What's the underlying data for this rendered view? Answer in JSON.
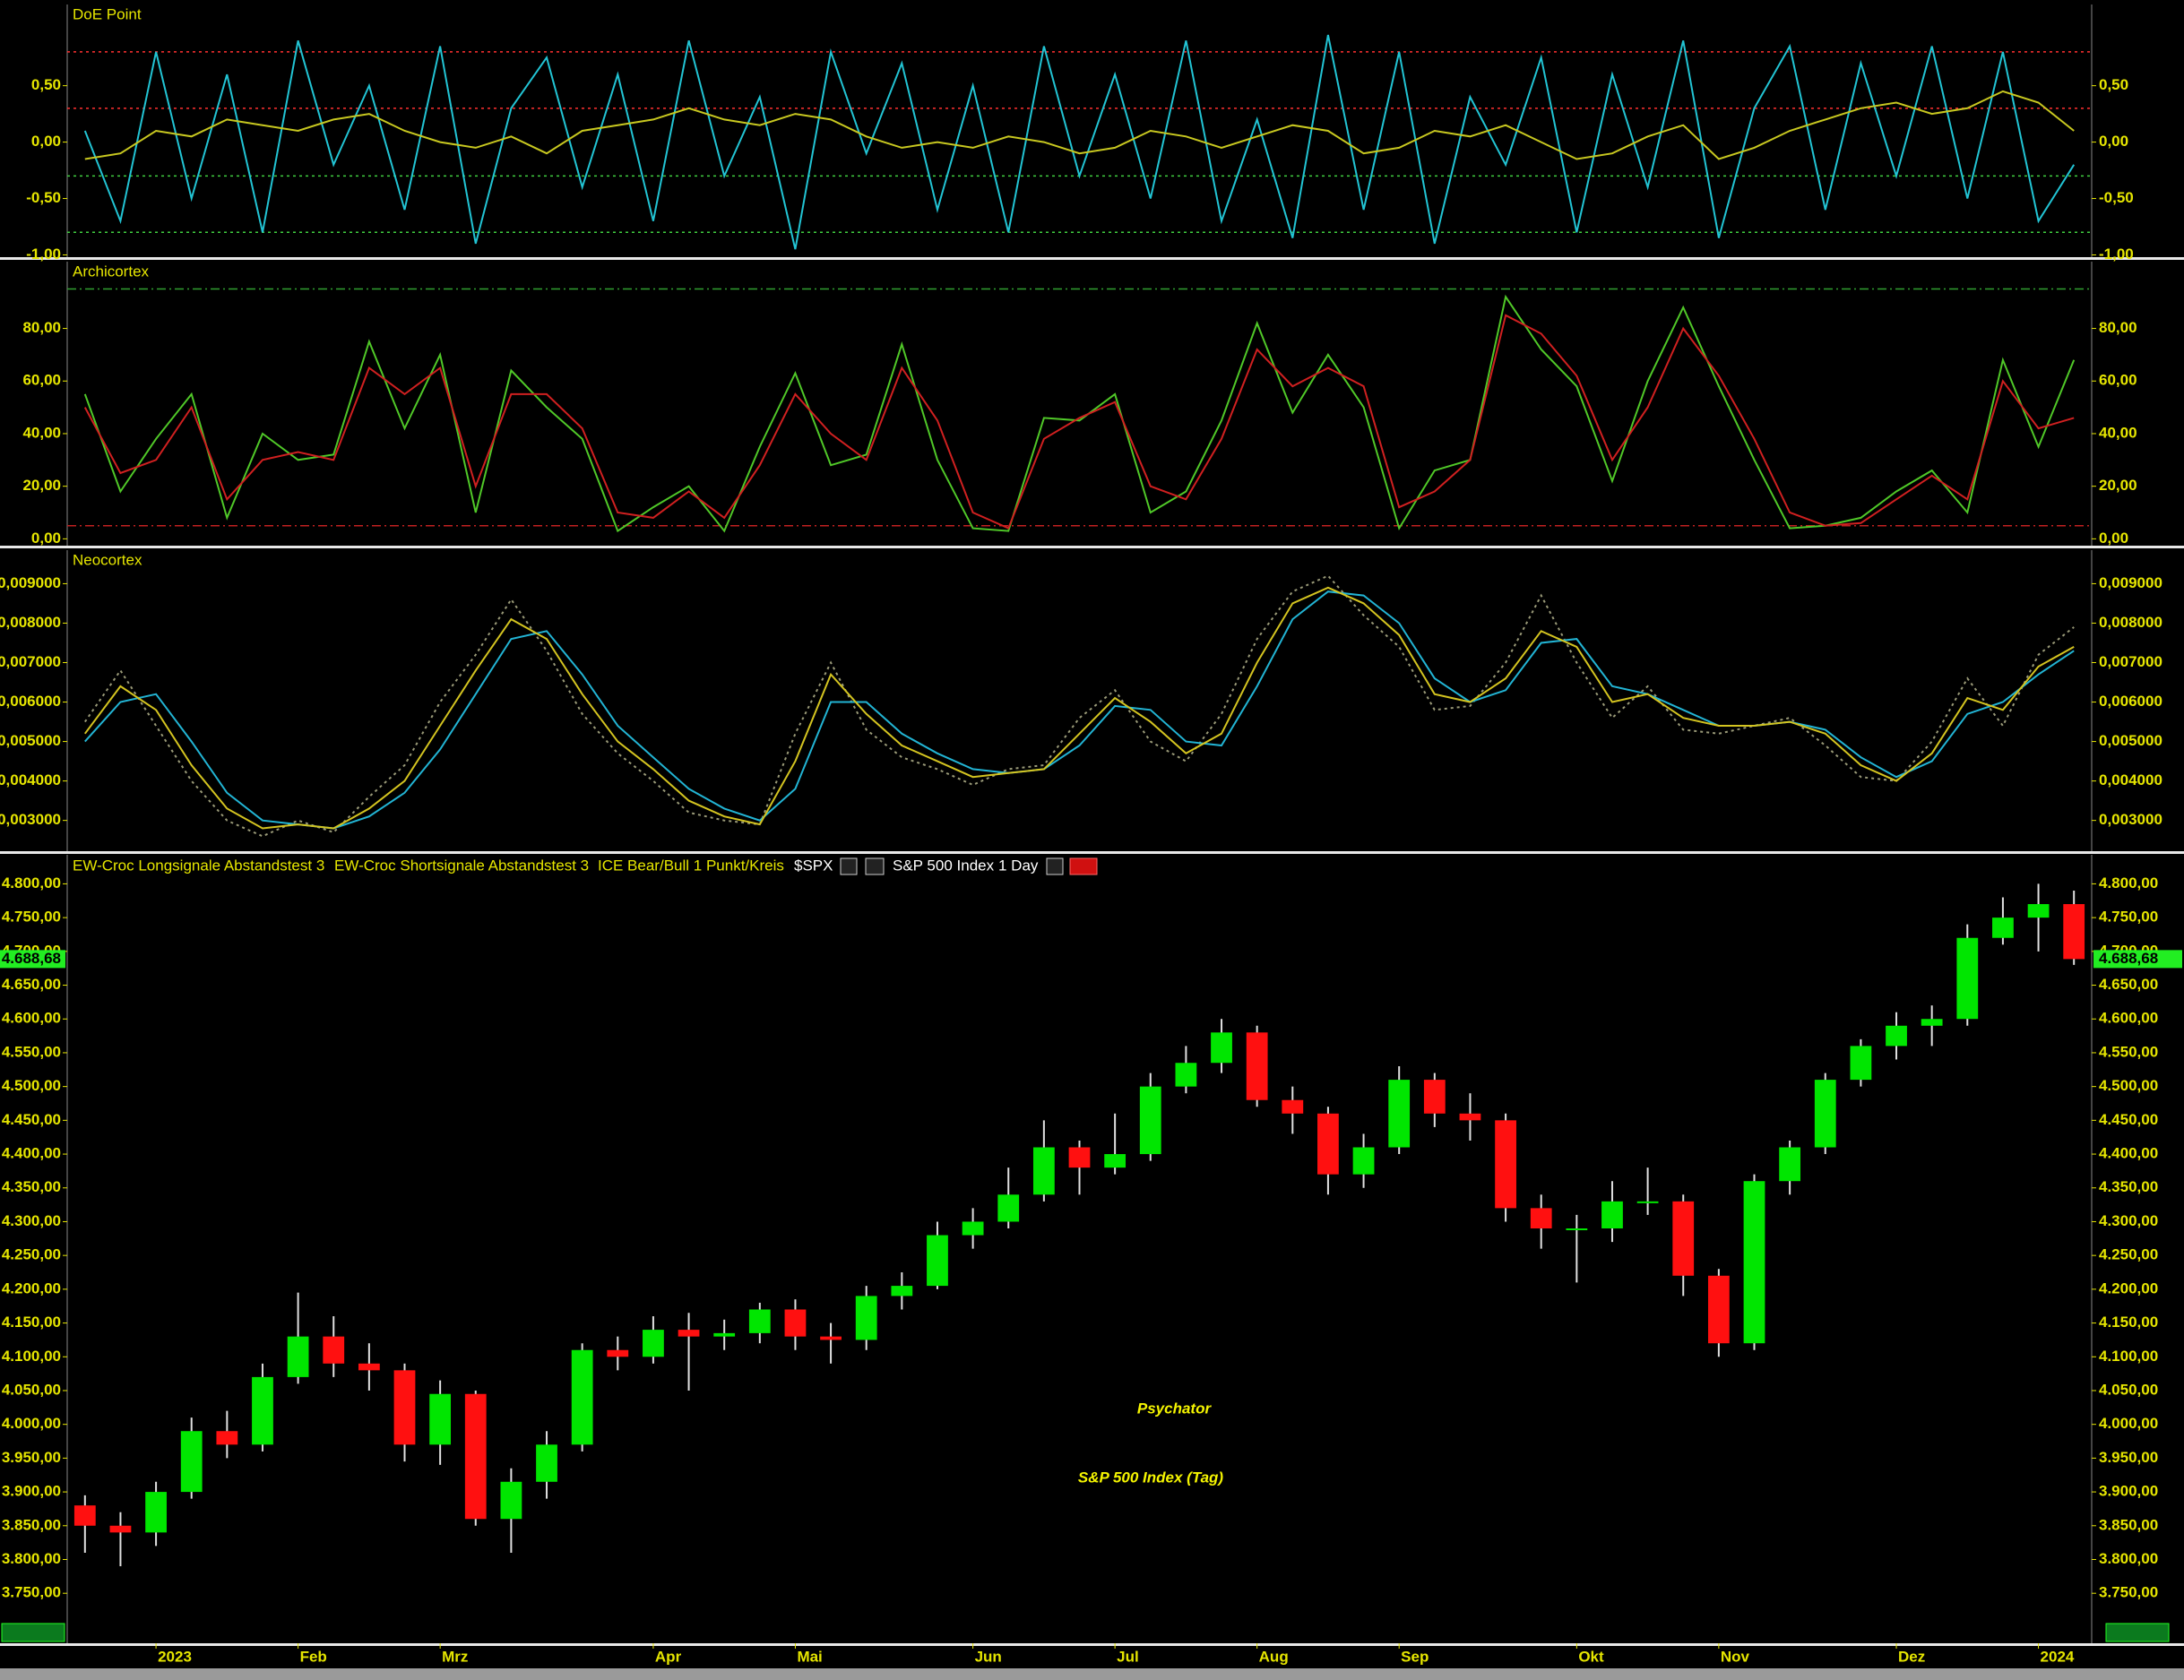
{
  "chart_data": [
    {
      "type": "line",
      "title": "DoE Point",
      "ylim": [
        -1.02,
        1.22
      ],
      "yticks": [
        {
          "value": 0.5,
          "label": "0,50"
        },
        {
          "value": 0,
          "label": "0,00"
        },
        {
          "value": -0.5,
          "label": "-0,50"
        },
        {
          "value": -1,
          "label": "-1,00"
        }
      ],
      "reference_lines": [
        {
          "value": 0.8,
          "color": "#ff3030",
          "style": "dotted"
        },
        {
          "value": 0.3,
          "color": "#ff3030",
          "style": "dotted"
        },
        {
          "value": -0.3,
          "color": "#40d040",
          "style": "dotted"
        },
        {
          "value": -0.8,
          "color": "#40d040",
          "style": "dotted"
        }
      ],
      "series": [
        {
          "color": "#22c4d4",
          "values": [
            0.1,
            -0.7,
            0.8,
            -0.5,
            0.6,
            -0.8,
            0.9,
            -0.2,
            0.5,
            -0.6,
            0.85,
            -0.9,
            0.3,
            0.75,
            -0.4,
            0.6,
            -0.7,
            0.9,
            -0.3,
            0.4,
            -0.95,
            0.8,
            -0.1,
            0.7,
            -0.6,
            0.5,
            -0.8,
            0.85,
            -0.3,
            0.6,
            -0.5,
            0.9,
            -0.7,
            0.2,
            -0.85,
            0.95,
            -0.6,
            0.8,
            -0.9,
            0.4,
            -0.2,
            0.75,
            -0.8,
            0.6,
            -0.4,
            0.9,
            -0.85,
            0.3,
            0.85,
            -0.6,
            0.7,
            -0.3,
            0.85,
            -0.5,
            0.8,
            -0.7,
            -0.2
          ]
        },
        {
          "color": "#c8c820",
          "values": [
            -0.15,
            -0.1,
            0.1,
            0.05,
            0.2,
            0.15,
            0.1,
            0.2,
            0.25,
            0.1,
            0.0,
            -0.05,
            0.05,
            -0.1,
            0.1,
            0.15,
            0.2,
            0.3,
            0.2,
            0.15,
            0.25,
            0.2,
            0.05,
            -0.05,
            0.0,
            -0.05,
            0.05,
            0.0,
            -0.1,
            -0.05,
            0.1,
            0.05,
            -0.05,
            0.05,
            0.15,
            0.1,
            -0.1,
            -0.05,
            0.1,
            0.05,
            0.15,
            0.0,
            -0.15,
            -0.1,
            0.05,
            0.15,
            -0.15,
            -0.05,
            0.1,
            0.2,
            0.3,
            0.35,
            0.25,
            0.3,
            0.45,
            0.35,
            0.1
          ]
        }
      ]
    },
    {
      "type": "line",
      "title": "Archicortex",
      "ylim": [
        -2.6,
        105.4
      ],
      "yticks": [
        {
          "value": 0,
          "label": "0,00"
        },
        {
          "value": 20,
          "label": "20,00"
        },
        {
          "value": 40,
          "label": "40,00"
        },
        {
          "value": 60,
          "label": "60,00"
        },
        {
          "value": 80,
          "label": "80,00"
        }
      ],
      "reference_lines": [
        {
          "value": 95,
          "color": "#30a030",
          "style": "dashdot"
        },
        {
          "value": 5,
          "color": "#c02020",
          "style": "dashdot"
        }
      ],
      "series": [
        {
          "color": "#50c828",
          "values": [
            55,
            18,
            38,
            55,
            8,
            40,
            30,
            32,
            75,
            42,
            70,
            10,
            64,
            50,
            38,
            3,
            12,
            20,
            3,
            35,
            63,
            28,
            32,
            74,
            30,
            4,
            3,
            46,
            45,
            55,
            10,
            18,
            45,
            82,
            48,
            70,
            50,
            4,
            26,
            30,
            92,
            72,
            58,
            22,
            60,
            88,
            58,
            30,
            4,
            5,
            8,
            18,
            26,
            10,
            68,
            35,
            68
          ]
        },
        {
          "color": "#d02020",
          "values": [
            50,
            25,
            30,
            50,
            15,
            30,
            33,
            30,
            65,
            55,
            65,
            20,
            55,
            55,
            42,
            10,
            8,
            18,
            8,
            28,
            55,
            40,
            30,
            65,
            45,
            10,
            4,
            38,
            46,
            52,
            20,
            15,
            38,
            72,
            58,
            65,
            58,
            12,
            18,
            30,
            85,
            78,
            62,
            30,
            50,
            80,
            62,
            38,
            10,
            5,
            6,
            15,
            24,
            15,
            60,
            42,
            46
          ]
        }
      ]
    },
    {
      "type": "line",
      "title": "Neocortex",
      "ylim": [
        0.00222,
        0.00985
      ],
      "yticks": [
        {
          "value": 0.003,
          "label": "0,003000"
        },
        {
          "value": 0.004,
          "label": "0,004000"
        },
        {
          "value": 0.005,
          "label": "0,005000"
        },
        {
          "value": 0.006,
          "label": "0,006000"
        },
        {
          "value": 0.007,
          "label": "0,007000"
        },
        {
          "value": 0.008,
          "label": "0,008000"
        },
        {
          "value": 0.009,
          "label": "0,009000"
        }
      ],
      "series": [
        {
          "color": "#9a9a78",
          "style": "dotted",
          "values": [
            0.0055,
            0.0068,
            0.0054,
            0.004,
            0.003,
            0.0026,
            0.003,
            0.0027,
            0.0036,
            0.0044,
            0.006,
            0.0072,
            0.0086,
            0.0073,
            0.0057,
            0.0047,
            0.004,
            0.0032,
            0.003,
            0.0029,
            0.0052,
            0.007,
            0.0053,
            0.0046,
            0.0043,
            0.0039,
            0.0043,
            0.0044,
            0.0056,
            0.0063,
            0.005,
            0.0045,
            0.0057,
            0.0076,
            0.0088,
            0.0092,
            0.0082,
            0.0074,
            0.0058,
            0.0059,
            0.007,
            0.0087,
            0.007,
            0.0056,
            0.0064,
            0.0053,
            0.0052,
            0.0054,
            0.0056,
            0.0049,
            0.0041,
            0.004,
            0.005,
            0.0066,
            0.0054,
            0.0072,
            0.0079
          ]
        },
        {
          "color": "#22b4d4",
          "values": [
            0.005,
            0.006,
            0.0062,
            0.005,
            0.0037,
            0.003,
            0.0029,
            0.0028,
            0.0031,
            0.0037,
            0.0048,
            0.0062,
            0.0076,
            0.0078,
            0.0067,
            0.0054,
            0.0046,
            0.0038,
            0.0033,
            0.003,
            0.0038,
            0.006,
            0.006,
            0.0052,
            0.0047,
            0.0043,
            0.0042,
            0.0043,
            0.0049,
            0.0059,
            0.0058,
            0.005,
            0.0049,
            0.0064,
            0.0081,
            0.0088,
            0.0087,
            0.008,
            0.0066,
            0.006,
            0.0063,
            0.0075,
            0.0076,
            0.0064,
            0.0062,
            0.0058,
            0.0054,
            0.0054,
            0.0055,
            0.0053,
            0.0046,
            0.0041,
            0.0045,
            0.0057,
            0.006,
            0.0067,
            0.0073
          ]
        },
        {
          "color": "#d4c420",
          "values": [
            0.0052,
            0.0064,
            0.0058,
            0.0044,
            0.0033,
            0.0028,
            0.0029,
            0.0028,
            0.0033,
            0.004,
            0.0054,
            0.0068,
            0.0081,
            0.0076,
            0.0062,
            0.005,
            0.0043,
            0.0035,
            0.0031,
            0.0029,
            0.0045,
            0.0067,
            0.0057,
            0.0049,
            0.0045,
            0.0041,
            0.0042,
            0.0043,
            0.0052,
            0.0061,
            0.0055,
            0.0047,
            0.0052,
            0.007,
            0.0085,
            0.0089,
            0.0085,
            0.0077,
            0.0062,
            0.006,
            0.0066,
            0.0078,
            0.0074,
            0.006,
            0.0062,
            0.0056,
            0.0054,
            0.0054,
            0.0055,
            0.0052,
            0.0044,
            0.004,
            0.0047,
            0.0061,
            0.0058,
            0.0069,
            0.0074
          ]
        }
      ]
    },
    {
      "type": "candlestick",
      "legend_items": [
        "EW-Croc Longsignale Abstandstest 3",
        "EW-Croc Shortsignale Abstandstest 3",
        "ICE Bear/Bull 1 Punkt/Kreis"
      ],
      "symbol": "$SPX",
      "instrument": "S&P 500 Index",
      "interval": "1 Day",
      "annotations": [
        "Psychator",
        "S&P 500 Index (Tag)"
      ],
      "last_value": 4688.68,
      "last_value_label": "4.688,68",
      "up_color": "#00e600",
      "down_color": "#ff1010",
      "ylim": [
        3676,
        4843
      ],
      "yticks": [
        {
          "value": 3750,
          "label": "3.750,00"
        },
        {
          "value": 3800,
          "label": "3.800,00"
        },
        {
          "value": 3850,
          "label": "3.850,00"
        },
        {
          "value": 3900,
          "label": "3.900,00"
        },
        {
          "value": 3950,
          "label": "3.950,00"
        },
        {
          "value": 4000,
          "label": "4.000,00"
        },
        {
          "value": 4050,
          "label": "4.050,00"
        },
        {
          "value": 4100,
          "label": "4.100,00"
        },
        {
          "value": 4150,
          "label": "4.150,00"
        },
        {
          "value": 4200,
          "label": "4.200,00"
        },
        {
          "value": 4250,
          "label": "4.250,00"
        },
        {
          "value": 4300,
          "label": "4.300,00"
        },
        {
          "value": 4350,
          "label": "4.350,00"
        },
        {
          "value": 4400,
          "label": "4.400,00"
        },
        {
          "value": 4450,
          "label": "4.450,00"
        },
        {
          "value": 4500,
          "label": "4.500,00"
        },
        {
          "value": 4550,
          "label": "4.550,00"
        },
        {
          "value": 4600,
          "label": "4.600,00"
        },
        {
          "value": 4650,
          "label": "4.650,00"
        },
        {
          "value": 4700,
          "label": "4.700,00"
        },
        {
          "value": 4750,
          "label": "4.750,00"
        },
        {
          "value": 4800,
          "label": "4.800,00"
        }
      ],
      "categories": [
        null,
        null,
        "2023",
        null,
        null,
        null,
        "Feb",
        null,
        null,
        null,
        "Mrz",
        null,
        null,
        null,
        null,
        null,
        "Apr",
        null,
        null,
        null,
        "Mai",
        null,
        null,
        null,
        null,
        "Jun",
        null,
        null,
        null,
        "Jul",
        null,
        null,
        null,
        "Aug",
        null,
        null,
        null,
        "Sep",
        null,
        null,
        null,
        null,
        "Okt",
        null,
        null,
        null,
        "Nov",
        null,
        null,
        null,
        null,
        "Dez",
        null,
        null,
        null,
        "2024",
        null
      ],
      "open": [
        3880,
        3850,
        3840,
        3900,
        3990,
        3970,
        4070,
        4130,
        4090,
        4080,
        3970,
        4045,
        3860,
        3915,
        3970,
        4110,
        4100,
        4140,
        4130,
        4135,
        4170,
        4130,
        4125,
        4190,
        4205,
        4280,
        4300,
        4340,
        4410,
        4380,
        4400,
        4500,
        4535,
        4580,
        4480,
        4460,
        4370,
        4410,
        4510,
        4460,
        4450,
        4320,
        4290,
        4290,
        4330,
        4330,
        4220,
        4120,
        4360,
        4410,
        4510,
        4560,
        4590,
        4600,
        4720,
        4750,
        4770
      ],
      "high": [
        3895,
        3870,
        3915,
        4010,
        4020,
        4090,
        4195,
        4160,
        4120,
        4090,
        4065,
        4050,
        3935,
        3990,
        4120,
        4130,
        4160,
        4165,
        4155,
        4180,
        4185,
        4150,
        4205,
        4225,
        4300,
        4320,
        4380,
        4450,
        4420,
        4460,
        4520,
        4560,
        4600,
        4590,
        4500,
        4470,
        4430,
        4530,
        4520,
        4490,
        4460,
        4340,
        4310,
        4360,
        4380,
        4340,
        4230,
        4370,
        4420,
        4520,
        4570,
        4610,
        4620,
        4740,
        4780,
        4800,
        4790
      ],
      "low": [
        3810,
        3790,
        3820,
        3890,
        3950,
        3960,
        4060,
        4070,
        4050,
        3945,
        3940,
        3850,
        3810,
        3890,
        3960,
        4080,
        4090,
        4050,
        4110,
        4120,
        4110,
        4090,
        4110,
        4170,
        4200,
        4260,
        4290,
        4330,
        4340,
        4370,
        4390,
        4490,
        4520,
        4470,
        4430,
        4340,
        4350,
        4400,
        4440,
        4420,
        4300,
        4260,
        4210,
        4270,
        4310,
        4190,
        4100,
        4110,
        4340,
        4400,
        4500,
        4540,
        4560,
        4590,
        4710,
        4700,
        4680
      ],
      "close": [
        3850,
        3840,
        3900,
        3990,
        3970,
        4070,
        4130,
        4090,
        4080,
        3970,
        4045,
        3860,
        3915,
        3970,
        4110,
        4100,
        4140,
        4130,
        4135,
        4170,
        4130,
        4125,
        4190,
        4205,
        4280,
        4300,
        4340,
        4410,
        4380,
        4400,
        4500,
        4535,
        4580,
        4480,
        4460,
        4370,
        4410,
        4510,
        4460,
        4450,
        4320,
        4290,
        4290,
        4330,
        4330,
        4220,
        4120,
        4360,
        4410,
        4510,
        4560,
        4590,
        4600,
        4720,
        4750,
        4770,
        4688.68
      ]
    }
  ]
}
